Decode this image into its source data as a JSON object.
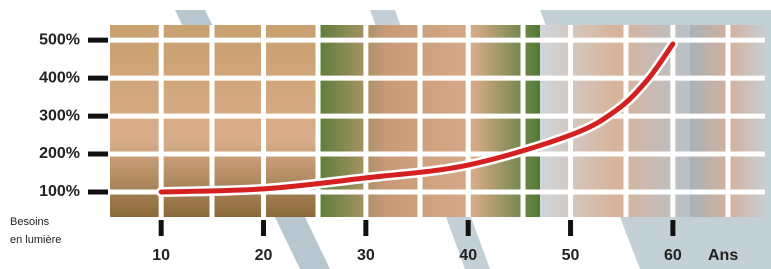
{
  "chart_data": {
    "type": "line",
    "y_label": [
      "Besoins",
      "en lumière"
    ],
    "x_label": "Ans",
    "x": [
      10,
      20,
      30,
      40,
      50,
      54.5,
      57.5,
      60
    ],
    "values": [
      100,
      108,
      137,
      171,
      250,
      316,
      395,
      490
    ],
    "color": "#d42020",
    "xlim": [
      5,
      69
    ],
    "xticks": [
      10,
      20,
      30,
      40,
      50,
      60
    ],
    "ylim": [
      34,
      540
    ],
    "yticks": [
      {
        "value": 100,
        "label": "100%"
      },
      {
        "value": 200,
        "label": "200%"
      },
      {
        "value": 300,
        "label": "300%"
      },
      {
        "value": 400,
        "label": "400%"
      },
      {
        "value": 500,
        "label": "500%"
      }
    ],
    "grid": true
  }
}
